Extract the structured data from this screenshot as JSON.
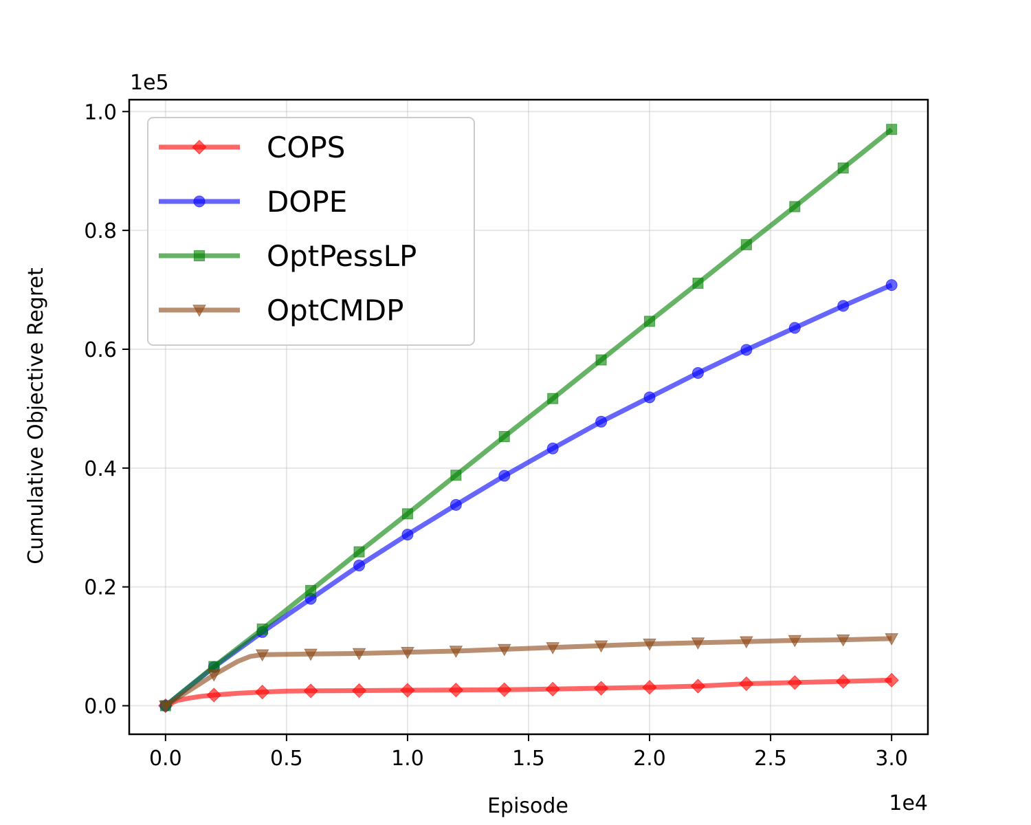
{
  "chart_data": {
    "type": "line",
    "title": "",
    "xlabel": "Episode",
    "ylabel": "Cumulative Objective Regret",
    "x_offset_label": "1e4",
    "y_offset_label": "1e5",
    "xlim": [
      -1500,
      31500
    ],
    "ylim": [
      -4800,
      102000
    ],
    "xticks": [
      0,
      5000,
      10000,
      15000,
      20000,
      25000,
      30000
    ],
    "xtick_labels": [
      "0.0",
      "0.5",
      "1.0",
      "1.5",
      "2.0",
      "2.5",
      "3.0"
    ],
    "yticks": [
      0,
      20000,
      40000,
      60000,
      80000,
      100000
    ],
    "ytick_labels": [
      "0.0",
      "0.2",
      "0.4",
      "0.6",
      "0.8",
      "1.0"
    ],
    "grid": true,
    "legend_position": "top-left",
    "x": [
      0,
      2000,
      4000,
      6000,
      8000,
      10000,
      12000,
      14000,
      16000,
      18000,
      20000,
      22000,
      24000,
      26000,
      28000,
      30000
    ],
    "series": [
      {
        "name": "COPS",
        "color": "#ff0000",
        "marker": "diamond",
        "curve_x": [
          0,
          500,
          1000,
          1500,
          2000,
          3000,
          4000,
          5000,
          6000,
          8000,
          10000,
          12000,
          14000,
          16000,
          18000,
          20000,
          22000,
          24000,
          26000,
          28000,
          30000
        ],
        "curve_y": [
          0,
          900,
          1300,
          1600,
          1800,
          2100,
          2300,
          2450,
          2500,
          2550,
          2600,
          2650,
          2700,
          2800,
          2950,
          3100,
          3300,
          3700,
          3900,
          4100,
          4300
        ],
        "values": [
          0,
          1800,
          2300,
          2500,
          2550,
          2600,
          2650,
          2700,
          2800,
          2950,
          3100,
          3300,
          3700,
          3900,
          4100,
          4300
        ]
      },
      {
        "name": "DOPE",
        "color": "#0000ff",
        "marker": "circle",
        "curve_x": [
          0,
          2000,
          4000,
          6000,
          8000,
          10000,
          12000,
          14000,
          16000,
          18000,
          20000,
          22000,
          24000,
          26000,
          28000,
          30000
        ],
        "curve_y": [
          0,
          6500,
          12400,
          18000,
          23600,
          28800,
          33800,
          38700,
          43300,
          47800,
          51900,
          56000,
          59900,
          63600,
          67300,
          70800
        ],
        "values": [
          0,
          6500,
          12400,
          18000,
          23600,
          28800,
          33800,
          38700,
          43300,
          47800,
          51900,
          56000,
          59900,
          63600,
          67300,
          70800
        ]
      },
      {
        "name": "OptPessLP",
        "color": "#008000",
        "marker": "square",
        "curve_x": [
          0,
          2000,
          4000,
          6000,
          8000,
          10000,
          12000,
          14000,
          16000,
          18000,
          20000,
          22000,
          24000,
          26000,
          28000,
          30000
        ],
        "curve_y": [
          0,
          6600,
          12900,
          19400,
          25900,
          32300,
          38800,
          45300,
          51700,
          58200,
          64700,
          71100,
          77600,
          84000,
          90500,
          97000
        ],
        "values": [
          0,
          6600,
          12900,
          19400,
          25900,
          32300,
          38800,
          45300,
          51700,
          58200,
          64700,
          71100,
          77600,
          84000,
          90500,
          97000
        ]
      },
      {
        "name": "OptCMDP",
        "color": "#8b4513",
        "marker": "triangle-down",
        "curve_x": [
          0,
          1000,
          2000,
          3000,
          3500,
          4000,
          6000,
          8000,
          10000,
          12000,
          14000,
          16000,
          18000,
          20000,
          22000,
          24000,
          26000,
          28000,
          30000
        ],
        "curve_y": [
          0,
          2600,
          5200,
          7500,
          8300,
          8600,
          8700,
          8800,
          9000,
          9200,
          9500,
          9800,
          10100,
          10400,
          10600,
          10800,
          11000,
          11100,
          11300
        ],
        "values": [
          0,
          5200,
          8600,
          8700,
          8800,
          9000,
          9200,
          9500,
          9800,
          10100,
          10400,
          10600,
          10800,
          11000,
          11100,
          11300
        ]
      }
    ]
  }
}
